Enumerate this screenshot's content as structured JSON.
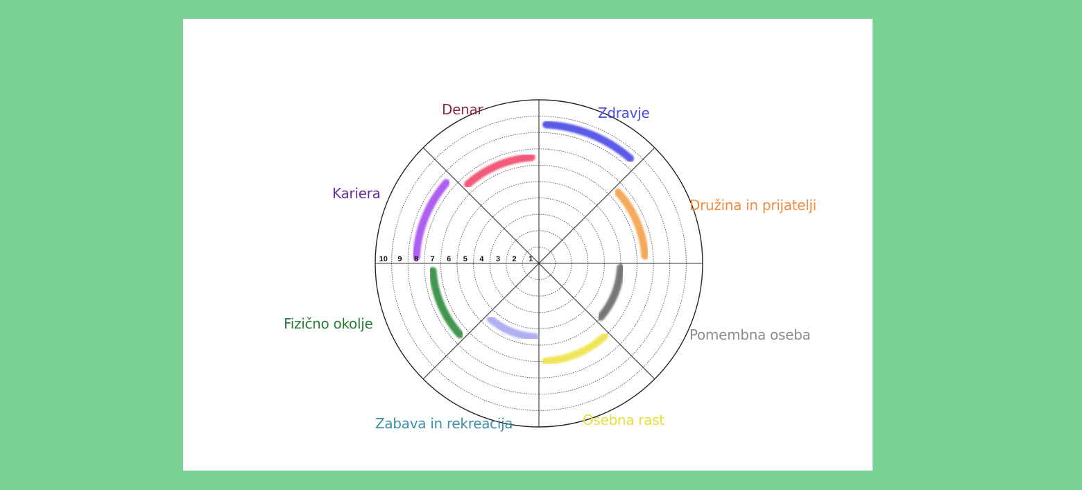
{
  "wheel": {
    "scale_labels": [
      "10",
      "9",
      "8",
      "7",
      "6",
      "5",
      "4",
      "3",
      "2",
      "1"
    ],
    "segments": [
      {
        "name": "Zdravje",
        "score": 9,
        "color": "#4a4ae6",
        "label_color": "#4a4ae6"
      },
      {
        "name": "Družina in prijatelji",
        "score": 7,
        "color": "#f5a04a",
        "label_color": "#f58a3c"
      },
      {
        "name": "Pomembna oseba",
        "score": 5.5,
        "color": "#6b6b6b",
        "label_color": "#8c8c8c"
      },
      {
        "name": "Osebna rast",
        "score": 6.5,
        "color": "#f0e44e",
        "label_color": "#e8dc3c"
      },
      {
        "name": "Zabava in rekreacija",
        "score": 5,
        "color": "#a8a8f0",
        "label_color": "#3d8fa8"
      },
      {
        "name": "Fizično okolje",
        "score": 7,
        "color": "#2e8b3c",
        "label_color": "#2a7a34"
      },
      {
        "name": "Kariera",
        "score": 8,
        "color": "#a64df0",
        "label_color": "#6a2ea0"
      },
      {
        "name": "Denar",
        "score": 7,
        "color": "#f04a6a",
        "label_color": "#8c2a52"
      }
    ]
  }
}
